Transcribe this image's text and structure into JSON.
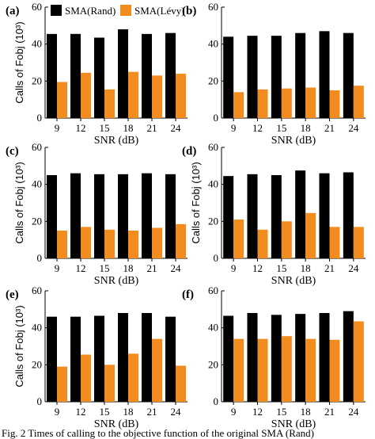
{
  "legend": {
    "rand_label": "SMA(Rand)",
    "levy_label": "SMA(Lévy)",
    "rand_color": "#000000",
    "levy_color": "#f28c1e"
  },
  "caption": "Fig. 2    Times of calling to the objective function of the original SMA (Rand)",
  "chart_data": [
    {
      "type": "bar",
      "panel": "(a)",
      "categories": [
        "9",
        "12",
        "15",
        "18",
        "21",
        "24"
      ],
      "series": [
        {
          "name": "SMA(Rand)",
          "values": [
            45.5,
            45.5,
            43.5,
            48,
            45.5,
            46
          ]
        },
        {
          "name": "SMA(Lévy)",
          "values": [
            19.5,
            24.5,
            15.5,
            25,
            23,
            24
          ]
        }
      ],
      "xlabel": "SNR (dB)",
      "ylabel": "Calls of  Fobj (10³)",
      "ylim": [
        0,
        60
      ],
      "yticks": [
        "0",
        "20",
        "40",
        "60"
      ]
    },
    {
      "type": "bar",
      "panel": "(b)",
      "categories": [
        "9",
        "12",
        "15",
        "18",
        "21",
        "24"
      ],
      "series": [
        {
          "name": "SMA(Rand)",
          "values": [
            44,
            44.5,
            44.5,
            46,
            47,
            46
          ]
        },
        {
          "name": "SMA(Lévy)",
          "values": [
            14,
            15.5,
            16,
            16.5,
            15,
            17.5
          ]
        }
      ],
      "xlabel": "SNR (dB)",
      "ylabel": "",
      "ylim": [
        0,
        60
      ],
      "yticks": [
        "0",
        "20",
        "40",
        "60"
      ]
    },
    {
      "type": "bar",
      "panel": "(c)",
      "categories": [
        "9",
        "12",
        "15",
        "18",
        "21",
        "24"
      ],
      "series": [
        {
          "name": "SMA(Rand)",
          "values": [
            45,
            46,
            45.5,
            45.5,
            46,
            45.5
          ]
        },
        {
          "name": "SMA(Lévy)",
          "values": [
            15,
            17,
            15.5,
            15,
            16.5,
            18.5
          ]
        }
      ],
      "xlabel": "SNR (dB)",
      "ylabel": "Calls of  Fobj (10³)",
      "ylim": [
        0,
        60
      ],
      "yticks": [
        "0",
        "20",
        "40",
        "60"
      ]
    },
    {
      "type": "bar",
      "panel": "(d)",
      "categories": [
        "9",
        "12",
        "15",
        "18",
        "21",
        "24"
      ],
      "series": [
        {
          "name": "SMA(Rand)",
          "values": [
            44.5,
            45.5,
            45,
            47.5,
            46,
            46.5
          ]
        },
        {
          "name": "SMA(Lévy)",
          "values": [
            21,
            15.5,
            20,
            24.5,
            17,
            17
          ]
        }
      ],
      "xlabel": "SNR (dB)",
      "ylabel": "Calls of  Fobj (10³)",
      "ylim": [
        0,
        60
      ],
      "yticks": [
        "0",
        "20",
        "40",
        "60"
      ]
    },
    {
      "type": "bar",
      "panel": "(e)",
      "categories": [
        "9",
        "12",
        "15",
        "18",
        "21",
        "24"
      ],
      "series": [
        {
          "name": "SMA(Rand)",
          "values": [
            46,
            46,
            46.5,
            48,
            48,
            46
          ]
        },
        {
          "name": "SMA(Lévy)",
          "values": [
            19,
            25.5,
            20,
            26,
            34,
            19.5
          ]
        }
      ],
      "xlabel": "SNR (dB)",
      "ylabel": "Calls of  Fobj (10³)",
      "ylim": [
        0,
        60
      ],
      "yticks": [
        "0",
        "20",
        "40",
        "60"
      ]
    },
    {
      "type": "bar",
      "panel": "(f)",
      "categories": [
        "9",
        "12",
        "15",
        "18",
        "21",
        "24"
      ],
      "series": [
        {
          "name": "SMA(Rand)",
          "values": [
            46.5,
            48,
            47,
            47.5,
            48,
            49
          ]
        },
        {
          "name": "SMA(Lévy)",
          "values": [
            34,
            34,
            35.5,
            34,
            33.5,
            43.5
          ]
        }
      ],
      "xlabel": "SNR (dB)",
      "ylabel": "",
      "ylim": [
        0,
        60
      ],
      "yticks": [
        "0",
        "20",
        "40",
        "60"
      ]
    }
  ]
}
